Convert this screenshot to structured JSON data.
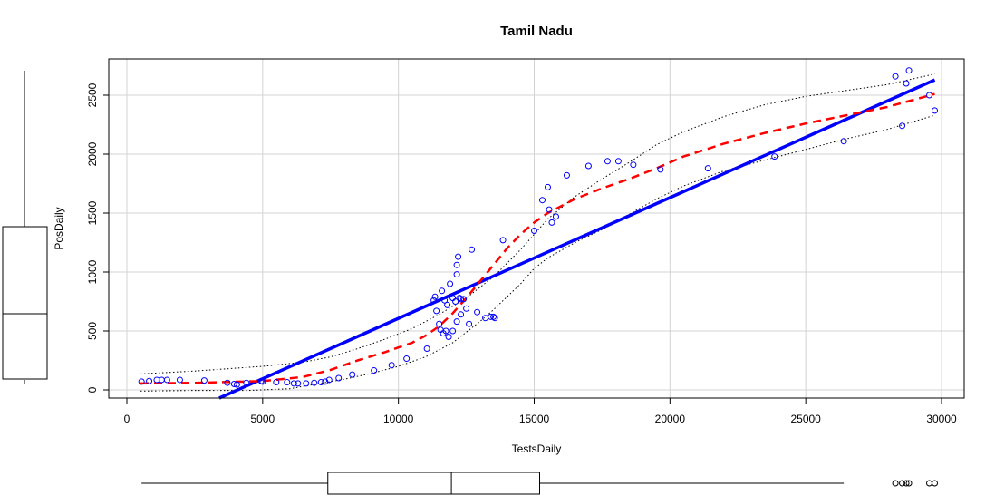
{
  "chart_data": {
    "type": "scatter",
    "title": "Tamil Nadu",
    "xlabel": "TestsDaily",
    "ylabel": "PosDaily",
    "xlim": [
      0,
      30000
    ],
    "ylim": [
      0,
      2700
    ],
    "x_ticks": [
      0,
      5000,
      10000,
      15000,
      20000,
      25000,
      30000
    ],
    "x_tick_labels": [
      "0",
      "5000",
      "10000",
      "15000",
      "20000",
      "25000",
      "30000"
    ],
    "y_ticks": [
      0,
      500,
      1000,
      1500,
      2000,
      2500
    ],
    "y_tick_labels": [
      "0",
      "500",
      "1000",
      "1500",
      "2000",
      "2500"
    ],
    "grid": true,
    "colors": {
      "points": "#0000ff",
      "linear_fit": "#0000ff",
      "smooth_fit": "#ff0000",
      "bands": "#000000",
      "grid": "#d3d3d3"
    },
    "points": [
      [
        540,
        70
      ],
      [
        820,
        75
      ],
      [
        1100,
        85
      ],
      [
        1280,
        85
      ],
      [
        1480,
        85
      ],
      [
        1950,
        85
      ],
      [
        2850,
        80
      ],
      [
        3700,
        60
      ],
      [
        3950,
        50
      ],
      [
        4050,
        45
      ],
      [
        4400,
        60
      ],
      [
        4950,
        75
      ],
      [
        5000,
        70
      ],
      [
        5500,
        65
      ],
      [
        5900,
        65
      ],
      [
        6150,
        55
      ],
      [
        6300,
        55
      ],
      [
        6600,
        55
      ],
      [
        6900,
        60
      ],
      [
        7150,
        65
      ],
      [
        7300,
        70
      ],
      [
        7450,
        85
      ],
      [
        7800,
        100
      ],
      [
        8300,
        130
      ],
      [
        9100,
        165
      ],
      [
        9750,
        210
      ],
      [
        10300,
        265
      ],
      [
        11050,
        350
      ],
      [
        11300,
        760
      ],
      [
        11350,
        790
      ],
      [
        11400,
        670
      ],
      [
        11500,
        560
      ],
      [
        11550,
        510
      ],
      [
        11600,
        840
      ],
      [
        11650,
        480
      ],
      [
        11700,
        760
      ],
      [
        11750,
        500
      ],
      [
        11800,
        720
      ],
      [
        11850,
        450
      ],
      [
        11900,
        900
      ],
      [
        12000,
        780
      ],
      [
        12000,
        500
      ],
      [
        12100,
        750
      ],
      [
        12150,
        1060
      ],
      [
        12150,
        980
      ],
      [
        12150,
        580
      ],
      [
        12200,
        1130
      ],
      [
        12250,
        780
      ],
      [
        12300,
        770
      ],
      [
        12300,
        640
      ],
      [
        12400,
        770
      ],
      [
        12500,
        690
      ],
      [
        12600,
        560
      ],
      [
        12700,
        1190
      ],
      [
        12900,
        660
      ],
      [
        13200,
        610
      ],
      [
        13400,
        620
      ],
      [
        13500,
        620
      ],
      [
        13550,
        610
      ],
      [
        13850,
        1270
      ],
      [
        15000,
        1350
      ],
      [
        15300,
        1610
      ],
      [
        15500,
        1720
      ],
      [
        15550,
        1530
      ],
      [
        15650,
        1420
      ],
      [
        15800,
        1470
      ],
      [
        16200,
        1820
      ],
      [
        17000,
        1900
      ],
      [
        17700,
        1940
      ],
      [
        18100,
        1940
      ],
      [
        18650,
        1910
      ],
      [
        19650,
        1870
      ],
      [
        21400,
        1880
      ],
      [
        23850,
        1980
      ],
      [
        26400,
        2110
      ],
      [
        28300,
        2660
      ],
      [
        28550,
        2240
      ],
      [
        28700,
        2600
      ],
      [
        28800,
        2710
      ],
      [
        29550,
        2500
      ],
      [
        29750,
        2370
      ]
    ],
    "linear_fit": [
      [
        3400,
        0
      ],
      [
        29750,
        2630
      ]
    ],
    "smooth_fit": [
      [
        500,
        55
      ],
      [
        2500,
        60
      ],
      [
        5000,
        75
      ],
      [
        6500,
        110
      ],
      [
        7500,
        170
      ],
      [
        8500,
        250
      ],
      [
        9500,
        320
      ],
      [
        10500,
        400
      ],
      [
        11000,
        460
      ],
      [
        11500,
        540
      ],
      [
        12000,
        650
      ],
      [
        12500,
        780
      ],
      [
        13000,
        920
      ],
      [
        13500,
        1060
      ],
      [
        14000,
        1200
      ],
      [
        14500,
        1320
      ],
      [
        15000,
        1420
      ],
      [
        15500,
        1500
      ],
      [
        16500,
        1620
      ],
      [
        17500,
        1710
      ],
      [
        18500,
        1790
      ],
      [
        19500,
        1880
      ],
      [
        20500,
        1980
      ],
      [
        22000,
        2090
      ],
      [
        23500,
        2180
      ],
      [
        25000,
        2260
      ],
      [
        26500,
        2330
      ],
      [
        28000,
        2400
      ],
      [
        29750,
        2510
      ]
    ],
    "upper_band": [
      [
        500,
        135
      ],
      [
        2500,
        160
      ],
      [
        5000,
        200
      ],
      [
        6500,
        235
      ],
      [
        7500,
        280
      ],
      [
        8500,
        350
      ],
      [
        9500,
        430
      ],
      [
        10500,
        520
      ],
      [
        11500,
        640
      ],
      [
        12500,
        780
      ],
      [
        13500,
        960
      ],
      [
        14500,
        1190
      ],
      [
        15500,
        1450
      ],
      [
        16500,
        1640
      ],
      [
        17500,
        1790
      ],
      [
        18500,
        1930
      ],
      [
        19500,
        2080
      ],
      [
        20500,
        2190
      ],
      [
        22000,
        2320
      ],
      [
        23500,
        2420
      ],
      [
        25000,
        2490
      ],
      [
        26500,
        2540
      ],
      [
        28000,
        2590
      ],
      [
        29750,
        2680
      ]
    ],
    "lower_band": [
      [
        500,
        -10
      ],
      [
        2500,
        -5
      ],
      [
        4500,
        -5
      ],
      [
        6000,
        10
      ],
      [
        7000,
        50
      ],
      [
        8000,
        90
      ],
      [
        9000,
        140
      ],
      [
        10000,
        200
      ],
      [
        11000,
        280
      ],
      [
        12000,
        400
      ],
      [
        13000,
        580
      ],
      [
        13500,
        680
      ],
      [
        14000,
        790
      ],
      [
        14500,
        900
      ],
      [
        15000,
        1030
      ],
      [
        15500,
        1120
      ],
      [
        16500,
        1250
      ],
      [
        17500,
        1360
      ],
      [
        18500,
        1490
      ],
      [
        19500,
        1620
      ],
      [
        20500,
        1730
      ],
      [
        22000,
        1860
      ],
      [
        23500,
        1950
      ],
      [
        25000,
        2040
      ],
      [
        26500,
        2130
      ],
      [
        28000,
        2210
      ],
      [
        29750,
        2330
      ]
    ],
    "x_boxplot": {
      "whisker_low": 540,
      "q1": 7400,
      "median": 11950,
      "q3": 15200,
      "whisker_high": 26400,
      "outliers": [
        28300,
        28550,
        28700,
        28800,
        29550,
        29750
      ]
    },
    "y_boxplot": {
      "whisker_low": 45,
      "q1": 85,
      "median": 640,
      "q3": 1380,
      "whisker_high": 2710
    }
  }
}
